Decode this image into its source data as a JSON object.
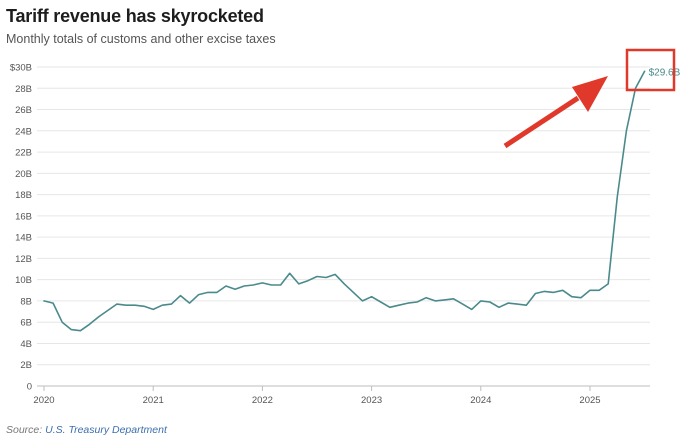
{
  "header": {
    "title": "Tariff revenue has skyrocketed",
    "subtitle": "Monthly totals of customs and other excise taxes"
  },
  "footer": {
    "source_label": "Source:",
    "source_name": "U.S. Treasury Department"
  },
  "annotation": {
    "end_value_label": "$29.6B",
    "box_color": "#e0392b",
    "arrow_color": "#e0392b"
  },
  "colors": {
    "line": "#4a8a8c",
    "end_label": "#4a8a8c"
  },
  "chart_data": {
    "type": "line",
    "title": "Tariff revenue has skyrocketed",
    "subtitle": "Monthly totals of customs and other excise taxes",
    "xlabel": "",
    "ylabel": "",
    "ylim": [
      0,
      30
    ],
    "y_ticks": [
      0,
      2,
      4,
      6,
      8,
      10,
      12,
      14,
      16,
      18,
      20,
      22,
      24,
      26,
      28,
      30
    ],
    "y_tick_labels": [
      "0",
      "2B",
      "4B",
      "6B",
      "8B",
      "10B",
      "12B",
      "14B",
      "16B",
      "18B",
      "20B",
      "22B",
      "24B",
      "26B",
      "28B",
      "$30B"
    ],
    "x_tick_labels": [
      "2020",
      "2021",
      "2022",
      "2023",
      "2024",
      "2025"
    ],
    "x_range": [
      "2020-01",
      "2025-09"
    ],
    "grid": "horizontal",
    "unit": "billions of dollars",
    "series": [
      {
        "name": "",
        "x": [
          "2020-01",
          "2020-02",
          "2020-03",
          "2020-04",
          "2020-05",
          "2020-06",
          "2020-07",
          "2020-08",
          "2020-09",
          "2020-10",
          "2020-11",
          "2020-12",
          "2021-01",
          "2021-02",
          "2021-03",
          "2021-04",
          "2021-05",
          "2021-06",
          "2021-07",
          "2021-08",
          "2021-09",
          "2021-10",
          "2021-11",
          "2021-12",
          "2022-01",
          "2022-02",
          "2022-03",
          "2022-04",
          "2022-05",
          "2022-06",
          "2022-07",
          "2022-08",
          "2022-09",
          "2022-10",
          "2022-11",
          "2022-12",
          "2023-01",
          "2023-02",
          "2023-03",
          "2023-04",
          "2023-05",
          "2023-06",
          "2023-07",
          "2023-08",
          "2023-09",
          "2023-10",
          "2023-11",
          "2023-12",
          "2024-01",
          "2024-02",
          "2024-03",
          "2024-04",
          "2024-05",
          "2024-06",
          "2024-07",
          "2024-08",
          "2024-09",
          "2024-10",
          "2024-11",
          "2024-12",
          "2025-01",
          "2025-02",
          "2025-03",
          "2025-04",
          "2025-05",
          "2025-06",
          "2025-07"
        ],
        "values": [
          8.0,
          7.8,
          6.0,
          5.3,
          5.2,
          5.8,
          6.5,
          7.1,
          7.7,
          7.6,
          7.6,
          7.5,
          7.2,
          7.6,
          7.7,
          8.5,
          7.8,
          8.6,
          8.8,
          8.8,
          9.4,
          9.1,
          9.4,
          9.5,
          9.7,
          9.5,
          9.5,
          10.6,
          9.6,
          9.9,
          10.3,
          10.2,
          10.5,
          9.6,
          8.8,
          8.0,
          8.4,
          7.9,
          7.4,
          7.6,
          7.8,
          7.9,
          8.3,
          8.0,
          8.1,
          8.2,
          7.7,
          7.2,
          8.0,
          7.9,
          7.4,
          7.8,
          7.7,
          7.6,
          8.7,
          8.9,
          8.8,
          9.0,
          8.4,
          8.3,
          9.0,
          9.0,
          9.6,
          17.8,
          24.0,
          28.0,
          29.6
        ]
      }
    ]
  }
}
